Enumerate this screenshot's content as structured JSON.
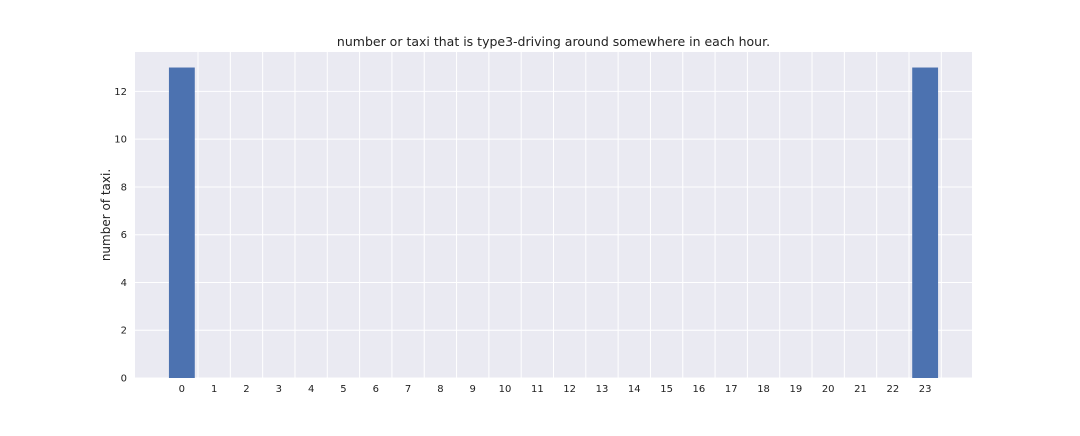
{
  "chart_data": {
    "type": "bar",
    "title": "number or taxi that is type3-driving around somewhere in each hour.",
    "xlabel": "",
    "ylabel": "number of taxi.",
    "categories": [
      "0",
      "1",
      "2",
      "3",
      "4",
      "5",
      "6",
      "7",
      "8",
      "9",
      "10",
      "11",
      "12",
      "13",
      "14",
      "15",
      "16",
      "17",
      "18",
      "19",
      "20",
      "21",
      "22",
      "23"
    ],
    "values": [
      13,
      0,
      0,
      0,
      0,
      0,
      0,
      0,
      0,
      0,
      0,
      0,
      0,
      0,
      0,
      0,
      0,
      0,
      0,
      0,
      0,
      0,
      0,
      13
    ],
    "ylim": [
      0,
      13.65
    ],
    "yticks": [
      0,
      2,
      4,
      6,
      8,
      10,
      12
    ],
    "grid": true,
    "legend": "none",
    "colors": {
      "bar": "#4c72b0",
      "plot_background": "#eaeaf2",
      "grid": "#ffffff"
    }
  }
}
